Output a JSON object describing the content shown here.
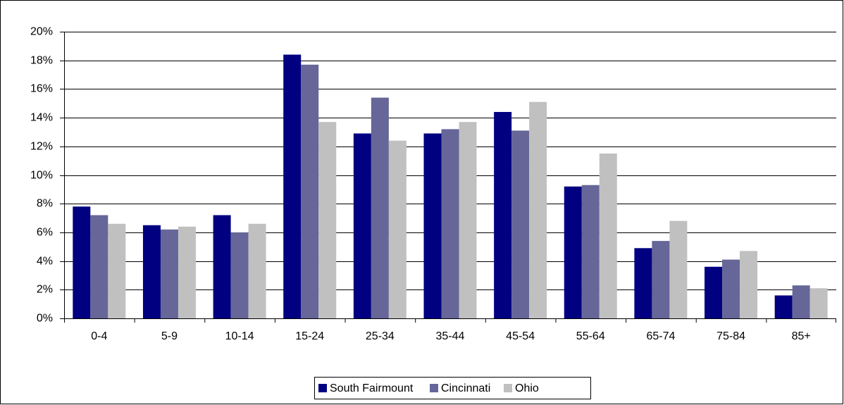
{
  "chart_data": {
    "type": "bar",
    "categories": [
      "0-4",
      "5-9",
      "10-14",
      "15-24",
      "25-34",
      "35-44",
      "45-54",
      "55-64",
      "65-74",
      "75-84",
      "85+"
    ],
    "series": [
      {
        "name": "South Fairmount",
        "color": "#000080",
        "values": [
          7.8,
          6.5,
          7.2,
          18.4,
          12.9,
          12.9,
          14.4,
          9.2,
          4.9,
          3.6,
          1.6
        ]
      },
      {
        "name": "Cincinnati",
        "color": "#666699",
        "values": [
          7.2,
          6.2,
          6.0,
          17.7,
          15.4,
          13.2,
          13.1,
          9.3,
          5.4,
          4.1,
          2.3
        ]
      },
      {
        "name": "Ohio",
        "color": "#c0c0c0",
        "values": [
          6.6,
          6.4,
          6.6,
          13.7,
          12.4,
          13.7,
          15.1,
          11.5,
          6.8,
          4.7,
          2.1
        ]
      }
    ],
    "ylim": [
      0,
      20
    ],
    "yticks": [
      {
        "value": 0,
        "label": "0%"
      },
      {
        "value": 2,
        "label": "2%"
      },
      {
        "value": 4,
        "label": "4%"
      },
      {
        "value": 6,
        "label": "6%"
      },
      {
        "value": 8,
        "label": "8%"
      },
      {
        "value": 10,
        "label": "10%"
      },
      {
        "value": 12,
        "label": "12%"
      },
      {
        "value": 14,
        "label": "14%"
      },
      {
        "value": 16,
        "label": "16%"
      },
      {
        "value": 18,
        "label": "18%"
      },
      {
        "value": 20,
        "label": "20%"
      }
    ],
    "grid": true,
    "legend": "bottom"
  }
}
